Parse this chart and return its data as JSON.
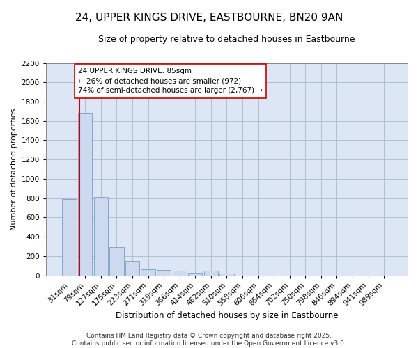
{
  "title1": "24, UPPER KINGS DRIVE, EASTBOURNE, BN20 9AN",
  "title2": "Size of property relative to detached houses in Eastbourne",
  "xlabel": "Distribution of detached houses by size in Eastbourne",
  "ylabel": "Number of detached properties",
  "categories": [
    "31sqm",
    "79sqm",
    "127sqm",
    "175sqm",
    "223sqm",
    "271sqm",
    "319sqm",
    "366sqm",
    "414sqm",
    "462sqm",
    "510sqm",
    "558sqm",
    "606sqm",
    "654sqm",
    "702sqm",
    "750sqm",
    "798sqm",
    "846sqm",
    "894sqm",
    "941sqm",
    "989sqm"
  ],
  "values": [
    790,
    1680,
    810,
    295,
    150,
    60,
    55,
    45,
    25,
    50,
    15,
    0,
    0,
    0,
    0,
    0,
    0,
    0,
    0,
    0,
    0
  ],
  "bar_color": "#ccd9ee",
  "bar_edge_color": "#7a9ec8",
  "bar_linewidth": 0.6,
  "vline_color": "#cc0000",
  "annotation_text": "24 UPPER KINGS DRIVE: 85sqm\n← 26% of detached houses are smaller (972)\n74% of semi-detached houses are larger (2,767) →",
  "annotation_box_color": "#ffffff",
  "annotation_box_edge": "#cc0000",
  "ylim": [
    0,
    2200
  ],
  "yticks": [
    0,
    200,
    400,
    600,
    800,
    1000,
    1200,
    1400,
    1600,
    1800,
    2000,
    2200
  ],
  "background_color": "#ffffff",
  "axes_bg_color": "#dde6f5",
  "grid_color": "#b0bfcf",
  "footnote": "Contains HM Land Registry data © Crown copyright and database right 2025.\nContains public sector information licensed under the Open Government Licence v3.0.",
  "title1_fontsize": 11,
  "title2_fontsize": 9,
  "xlabel_fontsize": 8.5,
  "ylabel_fontsize": 8,
  "tick_fontsize": 7.5,
  "annotation_fontsize": 7.5,
  "footnote_fontsize": 6.5
}
